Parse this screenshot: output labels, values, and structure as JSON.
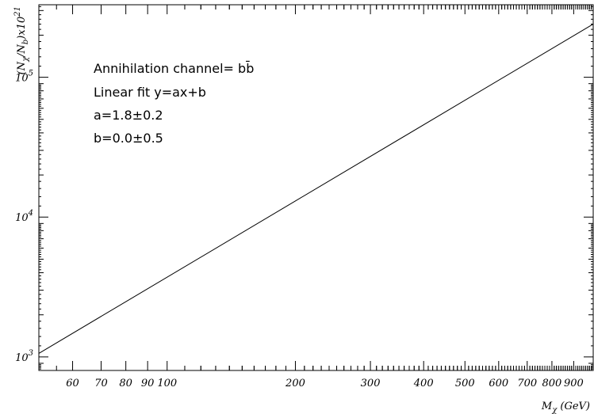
{
  "chart_data": {
    "type": "line",
    "x_scale": "log",
    "y_scale": "log",
    "xlim": [
      50,
      1000
    ],
    "ylim": [
      800,
      330000
    ],
    "grid": false,
    "xlabel": {
      "base": "M",
      "sub": "χ",
      "suffix": " (GeV)"
    },
    "ylabel": {
      "open": "(N",
      "sub1": "χ",
      "mid": "/N",
      "sub2": "b",
      "close": ")x10",
      "sup": "21"
    },
    "x_tick_labels": [
      {
        "value": 60,
        "label": "60"
      },
      {
        "value": 70,
        "label": "70"
      },
      {
        "value": 80,
        "label": "80"
      },
      {
        "value": 90,
        "label": "90"
      },
      {
        "value": 100,
        "label": "100"
      },
      {
        "value": 200,
        "label": "200"
      },
      {
        "value": 300,
        "label": "300"
      },
      {
        "value": 400,
        "label": "400"
      },
      {
        "value": 500,
        "label": "500"
      },
      {
        "value": 600,
        "label": "600"
      },
      {
        "value": 700,
        "label": "700"
      },
      {
        "value": 800,
        "label": "800"
      },
      {
        "value": 900,
        "label": "900"
      }
    ],
    "y_tick_labels": [
      {
        "value": 1000,
        "base": "10",
        "exp": "3"
      },
      {
        "value": 10000,
        "base": "10",
        "exp": "4"
      },
      {
        "value": 100000,
        "base": "10",
        "exp": "5"
      }
    ],
    "series": [
      {
        "x": [
          50,
          1000
        ],
        "y": [
          1060,
          240000
        ],
        "color": "#000000"
      }
    ],
    "annotations": [
      "Annihilation channel= bb̄",
      "Linear fit y=ax+b",
      "a=1.8±0.2",
      "b=0.0±0.5"
    ]
  }
}
